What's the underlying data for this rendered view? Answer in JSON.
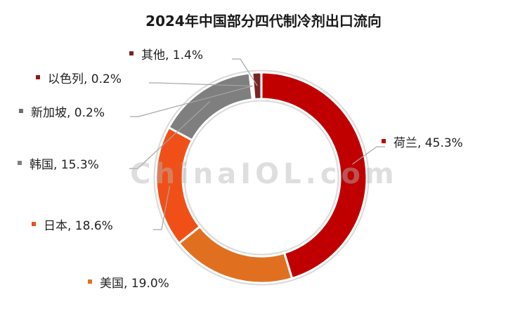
{
  "chart_data": {
    "type": "pie",
    "donut": true,
    "title": "2024年中国部分四代制冷剂出口流向",
    "series": [
      {
        "name": "荷兰",
        "value": 45.3,
        "value_label": "45.3%",
        "color": "#c00000"
      },
      {
        "name": "美国",
        "value": 19.0,
        "value_label": "19.0%",
        "color": "#e07020"
      },
      {
        "name": "日本",
        "value": 18.6,
        "value_label": "18.6%",
        "color": "#f05018"
      },
      {
        "name": "韩国",
        "value": 15.3,
        "value_label": "15.3%",
        "color": "#7f7f7f"
      },
      {
        "name": "新加坡",
        "value": 0.2,
        "value_label": "0.2%",
        "color": "#6d6d6d"
      },
      {
        "name": "以色列",
        "value": 0.2,
        "value_label": "0.2%",
        "color": "#8b1a1a"
      },
      {
        "name": "其他",
        "value": 1.4,
        "value_label": "1.4%",
        "color": "#7a2424"
      }
    ],
    "legend": "none",
    "data_labels": "outside with leader lines"
  },
  "watermark_text": "ChinaIOL.com"
}
